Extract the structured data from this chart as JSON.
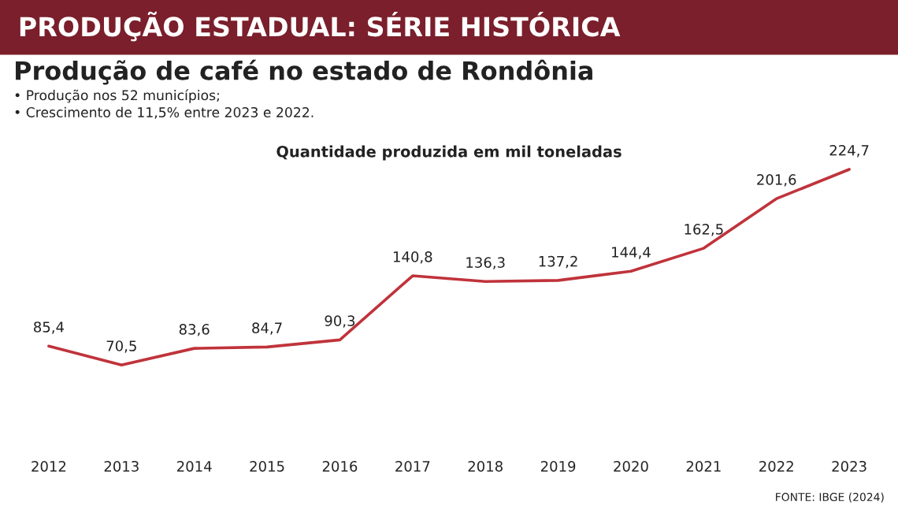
{
  "chart_data": {
    "type": "line",
    "title": "PRODUÇÃO ESTADUAL: SÉRIE HISTÓRICA",
    "subtitle": "Produção de café no estado de Rondônia",
    "annotations": [
      "• Produção nos 52 municípios;",
      "• Crescimento de 11,5% entre 2023 e 2022.",
      "Quantidade produzida em mil toneladas",
      "FONTE: IBGE (2024)"
    ],
    "categories": [
      "2012",
      "2013",
      "2014",
      "2015",
      "2016",
      "2017",
      "2018",
      "2019",
      "2020",
      "2021",
      "2022",
      "2023"
    ],
    "series": [
      {
        "color": "#c0333b",
        "values": [
          85.4,
          70.5,
          83.6,
          84.7,
          90.3,
          140.8,
          136.3,
          137.2,
          144.4,
          162.5,
          201.6,
          224.7
        ],
        "value_labels": [
          "85,4",
          "70,5",
          "83,6",
          "84,7",
          "90,3",
          "140,8",
          "136,3",
          "137,2",
          "144,4",
          "162,5",
          "201,6",
          "224,7"
        ]
      }
    ],
    "grid": false,
    "legend": false,
    "tick_labels": "x",
    "marker": "none",
    "line_style": "solid"
  }
}
